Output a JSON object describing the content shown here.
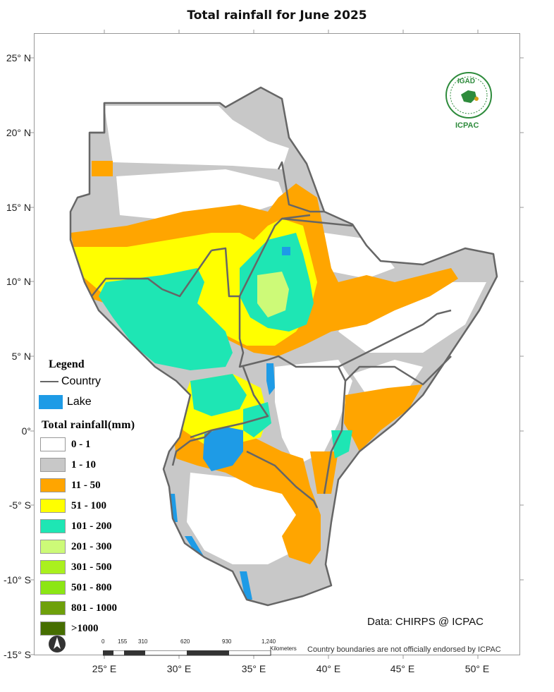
{
  "title": "Total rainfall for June 2025",
  "lat_labels": [
    "25° N",
    "20° N",
    "15° N",
    "10° N",
    "5° N",
    "0°",
    "-5° S",
    "-10° S",
    "-15° S"
  ],
  "lon_labels": [
    "25° E",
    "30° E",
    "35° E",
    "40° E",
    "45° E",
    "50° E"
  ],
  "legend": {
    "title": "Legend",
    "country_label": "Country",
    "lake_label": "Lake",
    "rain_title": "Total rainfall(mm)",
    "classes": [
      {
        "label": "0 - 1",
        "color": "#ffffff"
      },
      {
        "label": "1 - 10",
        "color": "#c8c8c8"
      },
      {
        "label": "11 - 50",
        "color": "#ffa500"
      },
      {
        "label": "51 - 100",
        "color": "#ffff00"
      },
      {
        "label": "101 - 200",
        "color": "#1ee6b4"
      },
      {
        "label": "201 - 300",
        "color": "#cdfa78"
      },
      {
        "label": "301 - 500",
        "color": "#aaf01e"
      },
      {
        "label": "501 - 800",
        "color": "#8ce614"
      },
      {
        "label": "801 - 1000",
        "color": "#6ea00a"
      },
      {
        "label": ">1000",
        "color": "#466e00"
      }
    ],
    "lake_color": "#1e9be6",
    "country_color": "#666666"
  },
  "logo": {
    "top_text": "IGAD",
    "bottom_text": "ICPAC",
    "color": "#2e8b3c"
  },
  "credits": "Data: CHIRPS @ ICPAC",
  "disclaimer": "Country boundaries are not officially endorsed by ICPAC",
  "scale": {
    "ticks": [
      "0",
      "155",
      "310",
      "620",
      "930",
      "1,240"
    ],
    "unit": "Kilometers"
  }
}
